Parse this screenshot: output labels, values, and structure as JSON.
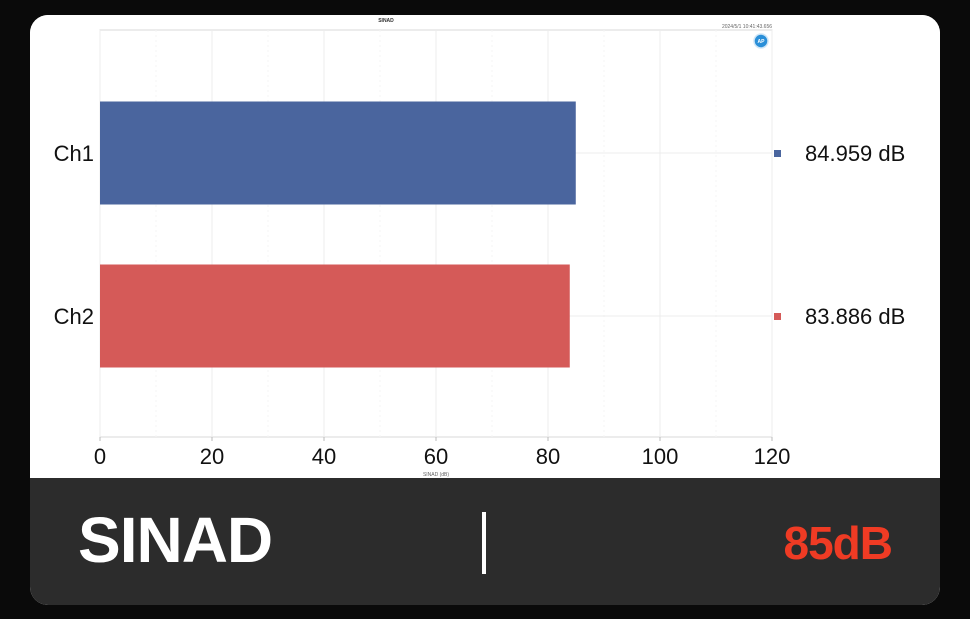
{
  "chart_data": {
    "type": "bar",
    "orientation": "horizontal",
    "title": "SINAD",
    "timestamp": "2024/5/1 10:41:43.656",
    "categories": [
      "Ch1",
      "Ch2"
    ],
    "values": [
      84.959,
      83.886
    ],
    "value_labels": [
      "84.959  dB",
      "83.886  dB"
    ],
    "colors": [
      "#4a659e",
      "#d55a58"
    ],
    "xlabel": "SINAD (dB)",
    "ylabel": "",
    "xlim": [
      0,
      120
    ],
    "xticks": [
      0,
      20,
      40,
      60,
      80,
      100,
      120
    ],
    "grid": true,
    "logo_icon": "ap-logo-icon"
  },
  "footer": {
    "title": "SINAD",
    "value": "85dB",
    "value_color": "#ef3b24"
  }
}
